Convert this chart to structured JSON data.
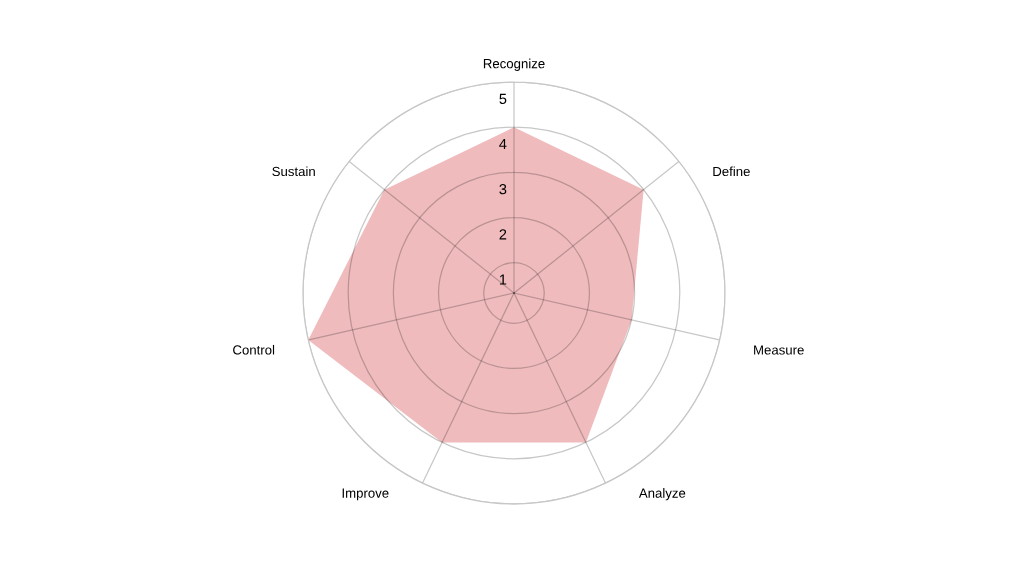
{
  "chart_data": {
    "type": "radar",
    "categories": [
      "Recognize",
      "Define",
      "Measure",
      "Analyze",
      "Improve",
      "Control",
      "Sustain"
    ],
    "series": [
      {
        "color": "#efbbbd",
        "values": [
          4,
          4,
          3,
          4,
          4,
          5,
          4
        ]
      }
    ],
    "ylim": [
      0.33,
      5
    ],
    "yticks": [
      1,
      2,
      3,
      4,
      5
    ],
    "grid": true
  }
}
